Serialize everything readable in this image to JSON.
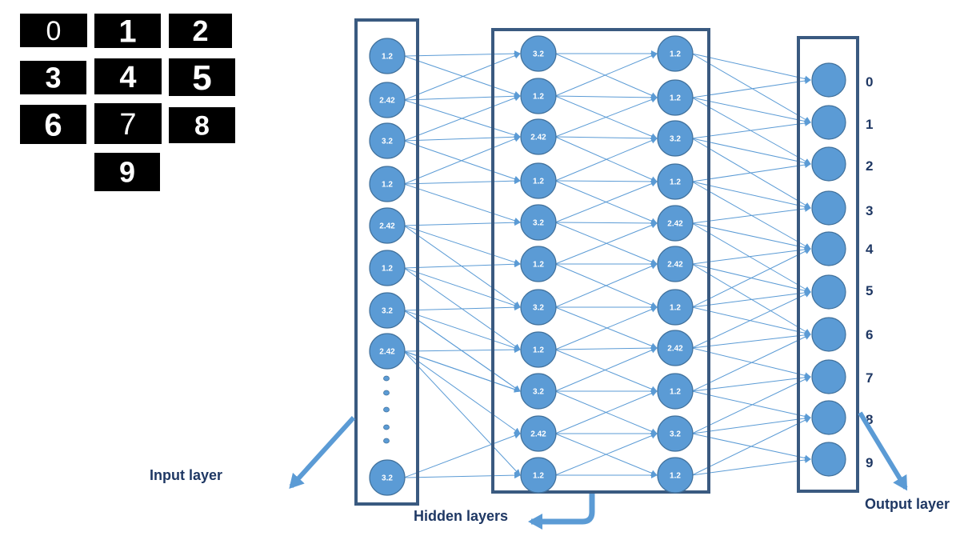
{
  "digits": [
    "0",
    "1",
    "2",
    "3",
    "4",
    "5",
    "6",
    "7",
    "8",
    "9"
  ],
  "layers": {
    "input": {
      "caption": "Input layer",
      "node_values": [
        "1.2",
        "2.42",
        "3.2",
        "1.2",
        "2.42",
        "1.2",
        "3.2",
        "2.42",
        "3.2"
      ]
    },
    "hidden": {
      "caption": "Hidden layers",
      "layer1_values": [
        "3.2",
        "1.2",
        "2.42",
        "1.2",
        "3.2",
        "1.2",
        "3.2",
        "1.2",
        "3.2",
        "2.42",
        "1.2"
      ],
      "layer2_values": [
        "1.2",
        "1.2",
        "3.2",
        "1.2",
        "2.42",
        "2.42",
        "1.2",
        "2.42",
        "1.2",
        "3.2",
        "1.2"
      ]
    },
    "output": {
      "caption": "Output layer",
      "class_labels": [
        "0",
        "1",
        "2",
        "3",
        "4",
        "5",
        "6",
        "7",
        "8",
        "9"
      ]
    }
  },
  "colors": {
    "node_fill": "#5b9bd5",
    "node_stroke": "#41719c",
    "box_stroke": "#3a5a80",
    "edge": "#5b9bd5",
    "label_text": "#1f3864",
    "tile_bg": "#000000",
    "tile_text": "#ffffff"
  }
}
